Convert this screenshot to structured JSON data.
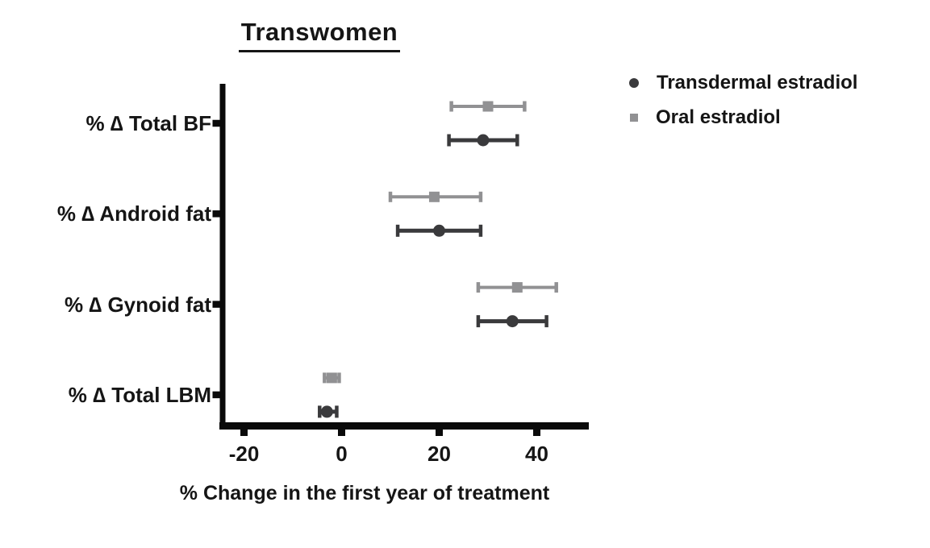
{
  "figure": {
    "background": "#ffffff"
  },
  "colors": {
    "text": "#151515",
    "axis": "#0a0a0a",
    "transdermal": "#3a3a3c",
    "oral": "#919193"
  },
  "chart_data": {
    "type": "scatter",
    "subtype": "horizontal-dot-plot-with-error-bars",
    "title": "Transwomen",
    "xlabel": "% Change in the first year of treatment",
    "categories": [
      "% ∆ Total BF",
      "% ∆ Android fat",
      "% ∆ Gynoid fat",
      "% ∆ Total LBM"
    ],
    "x_ticks": [
      -20,
      0,
      20,
      40
    ],
    "xlim": [
      -25,
      50.5
    ],
    "grid": false,
    "legend_position": "top-right",
    "series": [
      {
        "name": "Transdermal estradiol",
        "marker": "circle",
        "color": "#3a3a3c",
        "values": [
          29,
          20,
          35,
          -3
        ],
        "ci_low": [
          22,
          11.5,
          28,
          -4.5
        ],
        "ci_high": [
          36,
          28.5,
          42,
          -1
        ]
      },
      {
        "name": "Oral estradiol",
        "marker": "square",
        "color": "#919193",
        "values": [
          30,
          19,
          36,
          -2
        ],
        "ci_low": [
          22.5,
          10,
          28,
          -3.5
        ],
        "ci_high": [
          37.5,
          28.5,
          44,
          -0.5
        ]
      }
    ]
  }
}
